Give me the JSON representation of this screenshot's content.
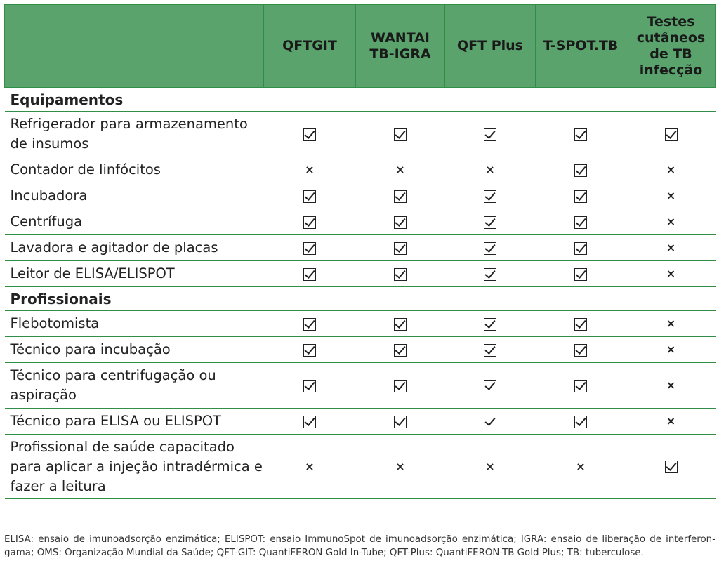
{
  "headers": [
    "",
    "QFTGIT",
    "WANTAI TB-IGRA",
    "QFT Plus",
    "T-SPOT.TB",
    "Testes cutâneos de TB infecção"
  ],
  "rows": [
    {
      "kind": "section",
      "label": "Equipamentos"
    },
    {
      "kind": "row",
      "size": "two",
      "label": "Refrigerador para armazenamento de insumos",
      "marks": [
        "check",
        "check",
        "check",
        "check",
        "check"
      ]
    },
    {
      "kind": "row",
      "size": "one",
      "label": "Contador de linfócitos",
      "marks": [
        "x",
        "x",
        "x",
        "check",
        "x"
      ]
    },
    {
      "kind": "row",
      "size": "one",
      "label": "Incubadora",
      "marks": [
        "check",
        "check",
        "check",
        "check",
        "x"
      ]
    },
    {
      "kind": "row",
      "size": "one",
      "label": "Centrífuga",
      "marks": [
        "check",
        "check",
        "check",
        "check",
        "x"
      ]
    },
    {
      "kind": "row",
      "size": "one",
      "label": "Lavadora e agitador de placas",
      "marks": [
        "check",
        "check",
        "check",
        "check",
        "x"
      ]
    },
    {
      "kind": "row",
      "size": "one",
      "label": "Leitor de ELISA/ELISPOT",
      "marks": [
        "check",
        "check",
        "check",
        "check",
        "x"
      ]
    },
    {
      "kind": "section",
      "label": "Profissionais"
    },
    {
      "kind": "row",
      "size": "one",
      "label": "Flebotomista",
      "marks": [
        "check",
        "check",
        "check",
        "check",
        "x"
      ]
    },
    {
      "kind": "row",
      "size": "one",
      "label": "Técnico para incubação",
      "marks": [
        "check",
        "check",
        "check",
        "check",
        "x"
      ]
    },
    {
      "kind": "row",
      "size": "two",
      "label": "Técnico para centrifugação ou aspiração",
      "marks": [
        "check",
        "check",
        "check",
        "check",
        "x"
      ]
    },
    {
      "kind": "row",
      "size": "one",
      "label": "Técnico para ELISA ou ELISPOT",
      "marks": [
        "check",
        "check",
        "check",
        "check",
        "x"
      ]
    },
    {
      "kind": "row",
      "size": "three",
      "label": "Profissional de saúde capacitado para aplicar a injeção intradérmica e fazer a leitura",
      "marks": [
        "x",
        "x",
        "x",
        "x",
        "check"
      ]
    }
  ],
  "footnote": "ELISA: ensaio de imunoadsorção enzimática; ELISPOT: ensaio ImmunoSpot de imunoadsorção enzimática; IGRA: ensaio de liberação de interferon-gama; OMS: Organização Mundial da Saúde; QFT-GIT: QuantiFERON Gold In-Tube; QFT-Plus: QuantiFERON-TB Gold Plus; TB: tuberculose.",
  "colors": {
    "header_bg": "#5aa36c",
    "rule": "#2f8f46"
  }
}
